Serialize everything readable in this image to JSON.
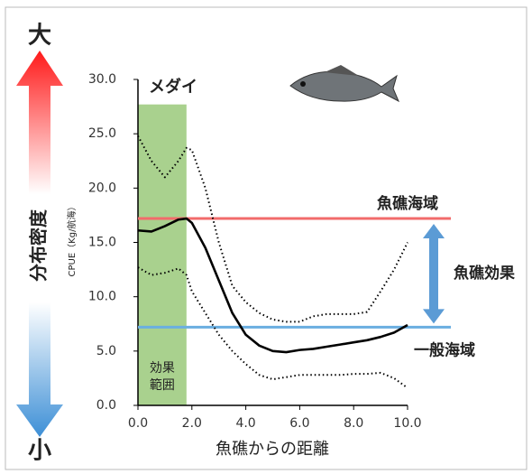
{
  "chart_data": {
    "type": "line",
    "title": "メダイ",
    "xlabel": "魚礁からの距離",
    "ylabel": "CPUE（Kg/航海）",
    "side_top": "大",
    "side_middle": "分布密度",
    "side_bottom": "小",
    "annotation": "魚礁効果",
    "xlim": [
      0,
      10
    ],
    "ylim": [
      0,
      30
    ],
    "xticks": [
      {
        "value": 0,
        "label": "0.0"
      },
      {
        "value": 2,
        "label": "2.0"
      },
      {
        "value": 4,
        "label": "4.0"
      },
      {
        "value": 6,
        "label": "6.0"
      },
      {
        "value": 8,
        "label": "8.0"
      },
      {
        "value": 10,
        "label": "10.0"
      }
    ],
    "yticks": [
      {
        "value": 0,
        "label": "0.0"
      },
      {
        "value": 5,
        "label": "5.0"
      },
      {
        "value": 10,
        "label": "10.0"
      },
      {
        "value": 15,
        "label": "15.0"
      },
      {
        "value": 20,
        "label": "20.0"
      },
      {
        "value": 25,
        "label": "25.0"
      },
      {
        "value": 30,
        "label": "30.0"
      }
    ],
    "x": [
      0,
      0.5,
      1,
      1.5,
      1.8,
      2,
      2.5,
      3,
      3.5,
      4,
      4.5,
      5,
      5.5,
      6,
      6.5,
      7,
      7.5,
      8,
      8.5,
      9,
      9.5,
      10
    ],
    "series": [
      {
        "color": "#000000",
        "style": "solid",
        "values": [
          16.1,
          16.0,
          16.5,
          17.1,
          17.2,
          16.8,
          14.5,
          11.5,
          8.5,
          6.5,
          5.5,
          5.0,
          4.9,
          5.1,
          5.2,
          5.4,
          5.6,
          5.8,
          6.0,
          6.3,
          6.7,
          7.4
        ]
      },
      {
        "color": "#000000",
        "style": "dotted",
        "values": [
          24.8,
          22.5,
          21.0,
          22.5,
          23.7,
          23.5,
          20.0,
          15.0,
          11.0,
          9.5,
          8.5,
          7.9,
          7.7,
          7.7,
          8.2,
          8.4,
          8.4,
          8.4,
          8.6,
          10.5,
          12.5,
          15.0
        ]
      },
      {
        "color": "#000000",
        "style": "dotted",
        "values": [
          12.7,
          12.0,
          12.2,
          12.6,
          12.0,
          10.5,
          8.5,
          6.5,
          5.0,
          3.8,
          2.8,
          2.4,
          2.6,
          2.8,
          2.8,
          2.8,
          2.8,
          2.9,
          2.9,
          3.0,
          2.5,
          1.6
        ]
      }
    ],
    "reference_lines": [
      {
        "label": "魚礁海域",
        "value": 17.2,
        "color": "#f26b6b"
      },
      {
        "label": "一般海域",
        "value": 7.2,
        "color": "#6aaee0"
      }
    ],
    "band": {
      "from": 0,
      "to": 1.8,
      "top": 27.7,
      "color": "#a9d18e",
      "lines": [
        "効果",
        "範囲"
      ]
    }
  }
}
